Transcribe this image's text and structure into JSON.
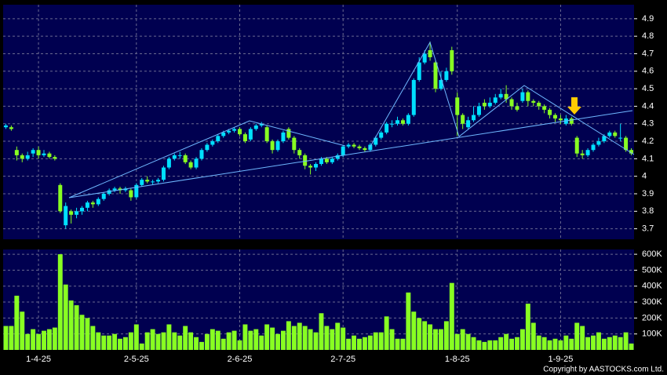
{
  "chart_data": [
    {
      "type": "candlestick",
      "categories": [
        null,
        null,
        null,
        null,
        null,
        null,
        "1-4-25",
        null,
        null,
        null,
        null,
        null,
        null,
        null,
        null,
        null,
        null,
        null,
        null,
        null,
        null,
        null,
        null,
        null,
        "2-5-25",
        null,
        null,
        null,
        null,
        null,
        null,
        null,
        null,
        null,
        null,
        null,
        null,
        null,
        null,
        null,
        null,
        null,
        null,
        "2-6-25",
        null,
        null,
        null,
        null,
        null,
        null,
        null,
        null,
        null,
        null,
        null,
        null,
        null,
        null,
        null,
        null,
        null,
        null,
        "2-7-25",
        null,
        null,
        null,
        null,
        null,
        null,
        null,
        null,
        null,
        null,
        null,
        null,
        null,
        null,
        null,
        null,
        null,
        null,
        null,
        null,
        "1-8-25",
        null,
        null,
        null,
        null,
        null,
        null,
        null,
        null,
        null,
        null,
        null,
        null,
        null,
        null,
        null,
        null,
        null,
        null,
        "1-9-25",
        null,
        null,
        null,
        null,
        null,
        null,
        null,
        null,
        null,
        null,
        null,
        null,
        null
      ],
      "open": [
        4.28,
        4.28,
        4.15,
        4.12,
        4.1,
        4.13,
        4.15,
        4.12,
        4.13,
        4.11,
        3.95,
        3.72,
        3.8,
        3.78,
        3.8,
        3.82,
        3.85,
        3.84,
        3.87,
        3.9,
        3.92,
        3.93,
        3.92,
        3.92,
        3.88,
        3.95,
        3.98,
        3.97,
        3.97,
        3.98,
        4.05,
        4.1,
        4.12,
        4.12,
        4.08,
        4.05,
        4.1,
        4.15,
        4.18,
        4.2,
        4.23,
        4.25,
        4.26,
        4.27,
        4.24,
        4.21,
        4.27,
        4.29,
        4.28,
        4.2,
        4.15,
        4.2,
        4.27,
        4.22,
        4.15,
        4.12,
        4.06,
        4.05,
        4.07,
        4.1,
        4.08,
        4.1,
        4.12,
        4.17,
        4.18,
        4.17,
        4.16,
        4.15,
        4.18,
        4.22,
        4.25,
        4.3,
        4.3,
        4.32,
        4.3,
        4.35,
        4.55,
        4.65,
        4.72,
        4.65,
        4.5,
        4.55,
        4.72,
        4.45,
        4.35,
        4.28,
        4.32,
        4.35,
        4.42,
        4.4,
        4.42,
        4.45,
        4.47,
        4.44,
        4.4,
        4.43,
        4.48,
        4.43,
        4.42,
        4.4,
        4.38,
        4.35,
        4.33,
        4.3,
        4.33,
        4.22,
        4.13,
        4.12,
        4.15,
        4.18,
        4.2,
        4.23,
        4.25,
        4.22,
        4.22,
        4.15
      ],
      "high": [
        4.3,
        4.29,
        4.17,
        4.13,
        4.14,
        4.16,
        4.17,
        4.15,
        4.14,
        4.12,
        3.96,
        3.85,
        3.81,
        3.82,
        3.83,
        3.86,
        3.86,
        3.88,
        3.91,
        3.93,
        3.94,
        3.94,
        3.94,
        3.93,
        3.96,
        3.99,
        4.0,
        3.98,
        3.99,
        4.06,
        4.11,
        4.13,
        4.14,
        4.13,
        4.09,
        4.11,
        4.16,
        4.19,
        4.21,
        4.24,
        4.26,
        4.27,
        4.28,
        4.28,
        4.25,
        4.28,
        4.3,
        4.31,
        4.29,
        4.21,
        4.21,
        4.26,
        4.28,
        4.23,
        4.16,
        4.13,
        4.07,
        4.08,
        4.11,
        4.11,
        4.11,
        4.13,
        4.18,
        4.19,
        4.19,
        4.18,
        4.17,
        4.19,
        4.23,
        4.26,
        4.31,
        4.32,
        4.34,
        4.33,
        4.36,
        4.56,
        4.68,
        4.72,
        4.77,
        4.66,
        4.6,
        4.62,
        4.74,
        4.48,
        4.36,
        4.34,
        4.4,
        4.42,
        4.44,
        4.45,
        4.47,
        4.5,
        4.52,
        4.45,
        4.42,
        4.5,
        4.49,
        4.44,
        4.43,
        4.41,
        4.39,
        4.36,
        4.35,
        4.35,
        4.34,
        4.23,
        4.15,
        4.16,
        4.19,
        4.22,
        4.24,
        4.26,
        4.26,
        4.3,
        4.23,
        4.16
      ],
      "low": [
        4.27,
        4.26,
        4.09,
        4.08,
        4.09,
        4.11,
        4.1,
        4.11,
        4.1,
        4.09,
        3.79,
        3.7,
        3.73,
        3.76,
        3.78,
        3.8,
        3.82,
        3.83,
        3.86,
        3.89,
        3.91,
        3.9,
        3.91,
        3.86,
        3.87,
        3.94,
        3.96,
        3.95,
        3.96,
        3.97,
        4.04,
        4.09,
        4.1,
        4.07,
        4.04,
        4.04,
        4.09,
        4.14,
        4.17,
        4.19,
        4.22,
        4.24,
        4.25,
        4.23,
        4.19,
        4.2,
        4.26,
        4.28,
        4.19,
        4.13,
        4.14,
        4.19,
        4.21,
        4.13,
        4.1,
        4.04,
        4.01,
        4.03,
        4.06,
        4.07,
        4.07,
        4.09,
        4.11,
        4.16,
        4.16,
        4.15,
        4.14,
        4.14,
        4.17,
        4.21,
        4.24,
        4.28,
        4.29,
        4.29,
        4.29,
        4.34,
        4.54,
        4.64,
        4.66,
        4.48,
        4.49,
        4.54,
        4.58,
        4.23,
        4.27,
        4.27,
        4.31,
        4.34,
        4.38,
        4.39,
        4.41,
        4.44,
        4.42,
        4.38,
        4.37,
        4.42,
        4.4,
        4.4,
        4.38,
        4.36,
        4.33,
        4.31,
        4.3,
        4.29,
        4.29,
        4.11,
        4.1,
        4.11,
        4.14,
        4.17,
        4.19,
        4.22,
        4.22,
        4.2,
        4.14,
        4.12
      ],
      "close": [
        4.29,
        4.27,
        4.12,
        4.1,
        4.12,
        4.15,
        4.12,
        4.13,
        4.11,
        4.1,
        3.8,
        3.83,
        3.78,
        3.8,
        3.82,
        3.85,
        3.84,
        3.87,
        3.9,
        3.92,
        3.93,
        3.92,
        3.93,
        3.88,
        3.95,
        3.98,
        3.97,
        3.97,
        3.98,
        4.05,
        4.1,
        4.12,
        4.12,
        4.08,
        4.05,
        4.1,
        4.15,
        4.18,
        4.2,
        4.23,
        4.25,
        4.26,
        4.27,
        4.24,
        4.2,
        4.27,
        4.29,
        4.3,
        4.2,
        4.15,
        4.2,
        4.25,
        4.22,
        4.15,
        4.12,
        4.06,
        4.05,
        4.07,
        4.1,
        4.08,
        4.1,
        4.12,
        4.17,
        4.18,
        4.17,
        4.16,
        4.15,
        4.18,
        4.22,
        4.25,
        4.3,
        4.3,
        4.32,
        4.3,
        4.35,
        4.55,
        4.65,
        4.7,
        4.68,
        4.5,
        4.55,
        4.6,
        4.6,
        4.35,
        4.3,
        4.32,
        4.35,
        4.4,
        4.4,
        4.42,
        4.45,
        4.47,
        4.44,
        4.4,
        4.38,
        4.48,
        4.43,
        4.42,
        4.4,
        4.38,
        4.35,
        4.33,
        4.32,
        4.33,
        4.3,
        4.13,
        4.12,
        4.15,
        4.18,
        4.2,
        4.23,
        4.25,
        4.23,
        4.22,
        4.15,
        4.13
      ],
      "up_color": "#00e0ff",
      "down_color": "#88ff22",
      "ylim": [
        3.64,
        4.98
      ],
      "yticks": [
        3.7,
        3.8,
        3.9,
        4,
        4.1,
        4.2,
        4.3,
        4.4,
        4.5,
        4.6,
        4.7,
        4.8,
        4.9
      ],
      "grid": true
    },
    {
      "type": "bar",
      "values": [
        150000,
        150000,
        340000,
        240000,
        100000,
        130000,
        100000,
        120000,
        130000,
        140000,
        600000,
        410000,
        310000,
        280000,
        220000,
        200000,
        150000,
        110000,
        90000,
        90000,
        100000,
        70000,
        80000,
        110000,
        160000,
        40000,
        110000,
        130000,
        100000,
        110000,
        160000,
        110000,
        90000,
        150000,
        110000,
        80000,
        50000,
        100000,
        130000,
        120000,
        70000,
        110000,
        120000,
        60000,
        160000,
        120000,
        130000,
        90000,
        160000,
        140000,
        100000,
        120000,
        180000,
        150000,
        170000,
        150000,
        130000,
        110000,
        230000,
        150000,
        130000,
        170000,
        140000,
        70000,
        90000,
        70000,
        80000,
        90000,
        110000,
        110000,
        210000,
        130000,
        70000,
        70000,
        360000,
        240000,
        200000,
        180000,
        160000,
        130000,
        130000,
        180000,
        420000,
        100000,
        130000,
        100000,
        80000,
        60000,
        50000,
        60000,
        60000,
        80000,
        100000,
        70000,
        80000,
        130000,
        290000,
        170000,
        90000,
        80000,
        60000,
        70000,
        60000,
        90000,
        70000,
        170000,
        150000,
        80000,
        90000,
        110000,
        70000,
        80000,
        90000,
        80000,
        110000,
        40000
      ],
      "color": "#88ff22",
      "ylim": [
        0,
        630000
      ],
      "yticks": [
        {
          "value": 100000,
          "label": "100K"
        },
        {
          "value": 200000,
          "label": "200K"
        },
        {
          "value": 300000,
          "label": "300K"
        },
        {
          "value": 400000,
          "label": "400K"
        },
        {
          "value": 500000,
          "label": "500K"
        },
        {
          "value": 600000,
          "label": "600K"
        }
      ],
      "grid": true
    }
  ],
  "footer": "Copyright by AASTOCKS.com Ltd."
}
